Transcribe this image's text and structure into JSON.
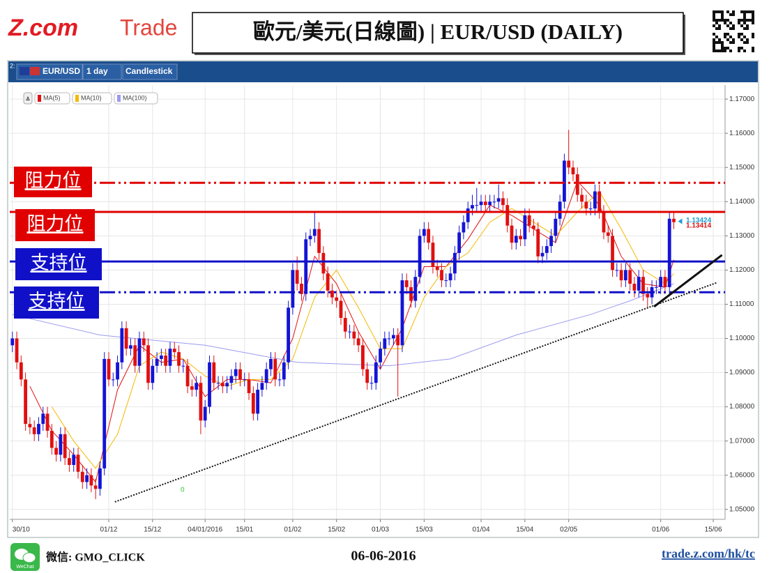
{
  "header": {
    "logo_main": "Z.com",
    "logo_sub": "Trade",
    "title": "歐元/美元(日線圖) | EUR/USD (DAILY)"
  },
  "toolbar": {
    "panel": "2:",
    "symbol": "EUR/USD",
    "period": "1 day",
    "style": "Candlestick"
  },
  "footer": {
    "wechat_icon": "WeChat",
    "wechat": "微信: GMO_CLICK",
    "date": "06-06-2016",
    "url": "trade.z.com/hk/tc"
  },
  "chart_data": {
    "type": "candlestick",
    "up_color": "#1414d6",
    "down_color": "#e01010",
    "ohlc": [
      [
        1.098,
        1.102,
        1.096,
        1.1
      ],
      [
        1.1,
        1.102,
        1.091,
        1.093
      ],
      [
        1.093,
        1.095,
        1.086,
        1.088
      ],
      [
        1.088,
        1.09,
        1.073,
        1.075
      ],
      [
        1.075,
        1.077,
        1.072,
        1.074
      ],
      [
        1.074,
        1.076,
        1.07,
        1.072
      ],
      [
        1.072,
        1.077,
        1.07,
        1.075
      ],
      [
        1.075,
        1.08,
        1.073,
        1.078
      ],
      [
        1.078,
        1.08,
        1.071,
        1.073
      ],
      [
        1.073,
        1.075,
        1.066,
        1.068
      ],
      [
        1.068,
        1.07,
        1.064,
        1.066
      ],
      [
        1.066,
        1.074,
        1.064,
        1.072
      ],
      [
        1.072,
        1.074,
        1.063,
        1.065
      ],
      [
        1.065,
        1.067,
        1.061,
        1.063
      ],
      [
        1.063,
        1.068,
        1.061,
        1.066
      ],
      [
        1.066,
        1.068,
        1.059,
        1.061
      ],
      [
        1.061,
        1.063,
        1.056,
        1.058
      ],
      [
        1.058,
        1.062,
        1.056,
        1.06
      ],
      [
        1.06,
        1.062,
        1.055,
        1.057
      ],
      [
        1.057,
        1.059,
        1.053,
        1.056
      ],
      [
        1.056,
        1.064,
        1.054,
        1.062
      ],
      [
        1.062,
        1.096,
        1.06,
        1.094
      ],
      [
        1.094,
        1.096,
        1.086,
        1.088
      ],
      [
        1.088,
        1.09,
        1.086,
        1.088
      ],
      [
        1.088,
        1.095,
        1.086,
        1.093
      ],
      [
        1.093,
        1.105,
        1.091,
        1.103
      ],
      [
        1.103,
        1.105,
        1.095,
        1.097
      ],
      [
        1.097,
        1.1,
        1.095,
        1.098
      ],
      [
        1.098,
        1.1,
        1.09,
        1.092
      ],
      [
        1.092,
        1.102,
        1.09,
        1.1
      ],
      [
        1.1,
        1.102,
        1.096,
        1.098
      ],
      [
        1.098,
        1.1,
        1.085,
        1.087
      ],
      [
        1.087,
        1.094,
        1.085,
        1.092
      ],
      [
        1.092,
        1.096,
        1.09,
        1.094
      ],
      [
        1.094,
        1.097,
        1.092,
        1.095
      ],
      [
        1.095,
        1.097,
        1.09,
        1.092
      ],
      [
        1.092,
        1.099,
        1.09,
        1.097
      ],
      [
        1.097,
        1.099,
        1.094,
        1.096
      ],
      [
        1.096,
        1.098,
        1.09,
        1.092
      ],
      [
        1.092,
        1.094,
        1.09,
        1.092
      ],
      [
        1.092,
        1.094,
        1.084,
        1.086
      ],
      [
        1.086,
        1.088,
        1.083,
        1.085
      ],
      [
        1.085,
        1.089,
        1.083,
        1.087
      ],
      [
        1.087,
        1.089,
        1.072,
        1.076
      ],
      [
        1.076,
        1.082,
        1.074,
        1.08
      ],
      [
        1.08,
        1.095,
        1.078,
        1.093
      ],
      [
        1.093,
        1.095,
        1.085,
        1.087
      ],
      [
        1.087,
        1.089,
        1.085,
        1.087
      ],
      [
        1.087,
        1.089,
        1.084,
        1.086
      ],
      [
        1.086,
        1.089,
        1.084,
        1.087
      ],
      [
        1.087,
        1.091,
        1.085,
        1.089
      ],
      [
        1.089,
        1.093,
        1.087,
        1.091
      ],
      [
        1.091,
        1.093,
        1.086,
        1.088
      ],
      [
        1.088,
        1.09,
        1.086,
        1.088
      ],
      [
        1.088,
        1.09,
        1.082,
        1.084
      ],
      [
        1.084,
        1.086,
        1.076,
        1.078
      ],
      [
        1.078,
        1.087,
        1.076,
        1.085
      ],
      [
        1.085,
        1.089,
        1.083,
        1.087
      ],
      [
        1.087,
        1.093,
        1.085,
        1.091
      ],
      [
        1.091,
        1.096,
        1.089,
        1.094
      ],
      [
        1.094,
        1.096,
        1.086,
        1.088
      ],
      [
        1.088,
        1.09,
        1.086,
        1.088
      ],
      [
        1.088,
        1.095,
        1.086,
        1.093
      ],
      [
        1.093,
        1.111,
        1.091,
        1.109
      ],
      [
        1.109,
        1.122,
        1.107,
        1.12
      ],
      [
        1.12,
        1.124,
        1.114,
        1.116
      ],
      [
        1.116,
        1.118,
        1.111,
        1.113
      ],
      [
        1.113,
        1.131,
        1.111,
        1.129
      ],
      [
        1.129,
        1.132,
        1.127,
        1.13
      ],
      [
        1.13,
        1.137,
        1.128,
        1.132
      ],
      [
        1.132,
        1.134,
        1.123,
        1.125
      ],
      [
        1.125,
        1.127,
        1.117,
        1.119
      ],
      [
        1.119,
        1.121,
        1.112,
        1.114
      ],
      [
        1.114,
        1.116,
        1.11,
        1.112
      ],
      [
        1.112,
        1.114,
        1.109,
        1.111
      ],
      [
        1.111,
        1.113,
        1.104,
        1.106
      ],
      [
        1.106,
        1.108,
        1.1,
        1.102
      ],
      [
        1.102,
        1.104,
        1.1,
        1.102
      ],
      [
        1.102,
        1.104,
        1.098,
        1.1
      ],
      [
        1.1,
        1.102,
        1.096,
        1.098
      ],
      [
        1.098,
        1.1,
        1.089,
        1.091
      ],
      [
        1.091,
        1.093,
        1.085,
        1.087
      ],
      [
        1.087,
        1.089,
        1.085,
        1.087
      ],
      [
        1.087,
        1.095,
        1.085,
        1.093
      ],
      [
        1.093,
        1.099,
        1.091,
        1.097
      ],
      [
        1.097,
        1.102,
        1.095,
        1.1
      ],
      [
        1.1,
        1.102,
        1.098,
        1.1
      ],
      [
        1.1,
        1.103,
        1.098,
        1.101
      ],
      [
        1.101,
        1.103,
        1.083,
        1.098
      ],
      [
        1.098,
        1.119,
        1.096,
        1.117
      ],
      [
        1.117,
        1.119,
        1.113,
        1.115
      ],
      [
        1.115,
        1.117,
        1.109,
        1.111
      ],
      [
        1.111,
        1.12,
        1.109,
        1.118
      ],
      [
        1.118,
        1.132,
        1.116,
        1.13
      ],
      [
        1.13,
        1.134,
        1.128,
        1.132
      ],
      [
        1.132,
        1.134,
        1.126,
        1.128
      ],
      [
        1.128,
        1.13,
        1.119,
        1.121
      ],
      [
        1.121,
        1.123,
        1.118,
        1.12
      ],
      [
        1.12,
        1.122,
        1.115,
        1.117
      ],
      [
        1.117,
        1.119,
        1.115,
        1.117
      ],
      [
        1.117,
        1.121,
        1.115,
        1.119
      ],
      [
        1.119,
        1.127,
        1.117,
        1.125
      ],
      [
        1.125,
        1.133,
        1.123,
        1.131
      ],
      [
        1.131,
        1.136,
        1.129,
        1.134
      ],
      [
        1.134,
        1.14,
        1.132,
        1.138
      ],
      [
        1.138,
        1.142,
        1.136,
        1.139
      ],
      [
        1.139,
        1.144,
        1.137,
        1.139
      ],
      [
        1.139,
        1.142,
        1.137,
        1.14
      ],
      [
        1.14,
        1.142,
        1.137,
        1.139
      ],
      [
        1.139,
        1.142,
        1.137,
        1.14
      ],
      [
        1.14,
        1.142,
        1.138,
        1.14
      ],
      [
        1.14,
        1.145,
        1.138,
        1.141
      ],
      [
        1.141,
        1.143,
        1.137,
        1.139
      ],
      [
        1.139,
        1.141,
        1.131,
        1.133
      ],
      [
        1.133,
        1.135,
        1.126,
        1.128
      ],
      [
        1.128,
        1.132,
        1.126,
        1.13
      ],
      [
        1.13,
        1.132,
        1.127,
        1.129
      ],
      [
        1.129,
        1.138,
        1.127,
        1.136
      ],
      [
        1.136,
        1.138,
        1.131,
        1.133
      ],
      [
        1.133,
        1.135,
        1.13,
        1.132
      ],
      [
        1.132,
        1.134,
        1.122,
        1.124
      ],
      [
        1.124,
        1.127,
        1.122,
        1.125
      ],
      [
        1.125,
        1.129,
        1.123,
        1.127
      ],
      [
        1.127,
        1.132,
        1.125,
        1.13
      ],
      [
        1.13,
        1.137,
        1.128,
        1.135
      ],
      [
        1.135,
        1.142,
        1.133,
        1.14
      ],
      [
        1.14,
        1.154,
        1.138,
        1.152
      ],
      [
        1.152,
        1.161,
        1.148,
        1.15
      ],
      [
        1.15,
        1.152,
        1.146,
        1.148
      ],
      [
        1.148,
        1.15,
        1.14,
        1.142
      ],
      [
        1.142,
        1.144,
        1.138,
        1.14
      ],
      [
        1.14,
        1.142,
        1.136,
        1.138
      ],
      [
        1.138,
        1.14,
        1.136,
        1.138
      ],
      [
        1.138,
        1.145,
        1.136,
        1.143
      ],
      [
        1.143,
        1.145,
        1.135,
        1.137
      ],
      [
        1.137,
        1.139,
        1.129,
        1.131
      ],
      [
        1.131,
        1.133,
        1.128,
        1.13
      ],
      [
        1.13,
        1.132,
        1.118,
        1.12
      ],
      [
        1.12,
        1.122,
        1.118,
        1.12
      ],
      [
        1.12,
        1.122,
        1.115,
        1.117
      ],
      [
        1.117,
        1.122,
        1.115,
        1.12
      ],
      [
        1.12,
        1.122,
        1.114,
        1.116
      ],
      [
        1.116,
        1.118,
        1.112,
        1.114
      ],
      [
        1.114,
        1.12,
        1.112,
        1.118
      ],
      [
        1.118,
        1.12,
        1.111,
        1.113
      ],
      [
        1.113,
        1.115,
        1.109,
        1.112
      ],
      [
        1.112,
        1.117,
        1.11,
        1.115
      ],
      [
        1.115,
        1.117,
        1.113,
        1.115
      ],
      [
        1.115,
        1.12,
        1.113,
        1.118
      ],
      [
        1.118,
        1.12,
        1.113,
        1.115
      ],
      [
        1.115,
        1.137,
        1.113,
        1.135
      ],
      [
        1.135,
        1.137,
        1.132,
        1.134
      ]
    ],
    "ma": [
      {
        "name": "MA(5)",
        "color": "#e01010",
        "x": [
          4,
          9,
          14,
          19,
          24,
          29,
          34,
          39,
          44,
          49,
          54,
          59,
          64,
          69,
          74,
          79,
          84,
          89,
          94,
          99,
          104,
          109,
          114,
          119,
          124,
          129,
          134,
          139,
          144,
          149,
          151
        ],
        "values": [
          1.086,
          1.073,
          1.066,
          1.058,
          1.085,
          1.098,
          1.093,
          1.094,
          1.083,
          1.088,
          1.088,
          1.087,
          1.1,
          1.124,
          1.116,
          1.102,
          1.091,
          1.103,
          1.121,
          1.121,
          1.129,
          1.139,
          1.136,
          1.132,
          1.128,
          1.146,
          1.139,
          1.124,
          1.116,
          1.115,
          1.123
        ]
      },
      {
        "name": "MA(10)",
        "color": "#f5b800",
        "x": [
          9,
          14,
          19,
          24,
          29,
          34,
          39,
          44,
          49,
          54,
          59,
          64,
          69,
          74,
          79,
          84,
          89,
          94,
          99,
          104,
          109,
          114,
          119,
          124,
          129,
          134,
          139,
          144,
          149,
          151
        ],
        "values": [
          1.08,
          1.07,
          1.062,
          1.072,
          1.092,
          1.096,
          1.094,
          1.089,
          1.086,
          1.088,
          1.088,
          1.094,
          1.112,
          1.12,
          1.109,
          1.097,
          1.097,
          1.112,
          1.121,
          1.125,
          1.134,
          1.138,
          1.134,
          1.13,
          1.137,
          1.143,
          1.132,
          1.12,
          1.116,
          1.119
        ]
      },
      {
        "name": "MA(100)",
        "color": "#9a9af0",
        "x": [
          0,
          20,
          44,
          65,
          86,
          100,
          115,
          132,
          141,
          151
        ],
        "values": [
          1.107,
          1.101,
          1.098,
          1.093,
          1.092,
          1.094,
          1.101,
          1.107,
          1.111,
          1.116
        ]
      }
    ],
    "xlim": [
      -0.6,
      162.7
    ],
    "xticks": [
      {
        "value": 0,
        "label": "30/10"
      },
      {
        "value": 22,
        "label": "01/12"
      },
      {
        "value": 32,
        "label": "15/12"
      },
      {
        "value": 44,
        "label": "04/01/2016"
      },
      {
        "value": 53,
        "label": "15/01"
      },
      {
        "value": 64,
        "label": "01/02"
      },
      {
        "value": 74,
        "label": "15/02"
      },
      {
        "value": 84,
        "label": "01/03"
      },
      {
        "value": 94,
        "label": "15/03"
      },
      {
        "value": 107,
        "label": "01/04"
      },
      {
        "value": 117,
        "label": "15/04"
      },
      {
        "value": 127,
        "label": "02/05"
      },
      {
        "value": 148,
        "label": "01/06"
      },
      {
        "value": 160,
        "label": "15/06"
      }
    ],
    "ylim": [
      1.0471,
      1.1741
    ],
    "yticks": [
      {
        "value": 1.05,
        "label": "1.05000"
      },
      {
        "value": 1.06,
        "label": "1.06000"
      },
      {
        "value": 1.07,
        "label": "1.07000"
      },
      {
        "value": 1.08,
        "label": "1.08000"
      },
      {
        "value": 1.09,
        "label": "1.09000"
      },
      {
        "value": 1.1,
        "label": "1.10000"
      },
      {
        "value": 1.11,
        "label": "1.11000"
      },
      {
        "value": 1.12,
        "label": "1.12000"
      },
      {
        "value": 1.13,
        "label": "1.13000"
      },
      {
        "value": 1.14,
        "label": "1.14000"
      },
      {
        "value": 1.15,
        "label": "1.15000"
      },
      {
        "value": 1.16,
        "label": "1.16000"
      },
      {
        "value": 1.17,
        "label": "1.17000"
      }
    ],
    "grid": true,
    "levels": [
      {
        "label": "阻力位",
        "value": 1.1455,
        "color": "#e00000",
        "style": "dashdot"
      },
      {
        "label": "阻力位",
        "value": 1.137,
        "color": "#e00000",
        "style": "solid"
      },
      {
        "label": "支持位",
        "value": 1.1225,
        "color": "#1010c8",
        "style": "solid"
      },
      {
        "label": "支持位",
        "value": 1.1135,
        "color": "#1010c8",
        "style": "dashdot"
      }
    ],
    "trendlines": [
      {
        "x": [
          23.4,
          161
        ],
        "y": [
          1.0522,
          1.1164
        ],
        "style": "dotted"
      },
      {
        "x": [
          146.5,
          162
        ],
        "y": [
          1.1093,
          1.1244
        ],
        "style": "solid"
      }
    ],
    "price_tags": [
      {
        "value": 1.13424,
        "color": "#1a9fd6"
      },
      {
        "value": 1.13414,
        "color": "#e01010"
      }
    ],
    "annotations": [
      "0"
    ]
  }
}
